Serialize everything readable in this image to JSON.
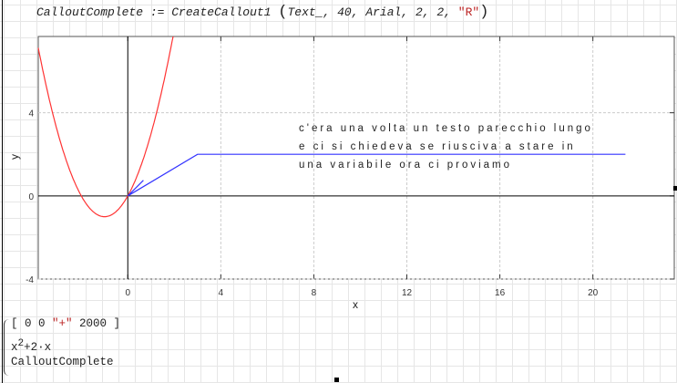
{
  "formula": {
    "lhs": "CalloutComplete",
    "assign": " := ",
    "func": "CreateCallout1",
    "args": [
      "Text_",
      "40",
      "Arial",
      "2",
      "2"
    ],
    "string_arg": "\"R\""
  },
  "plot": {
    "xlabel": "x",
    "ylabel": "y",
    "x_ticks": [
      "0",
      "4",
      "8",
      "12",
      "16",
      "20"
    ],
    "y_ticks": [
      "4",
      "0",
      "-4"
    ],
    "callout_lines": [
      "c'era una volta un testo parecchio lungo",
      "e ci si chiedeva se riusciva a stare in",
      "una variabile ora ci proviamo"
    ],
    "colors": {
      "curve": "#ff3333",
      "callout": "#3333ff",
      "axes": "#000000"
    }
  },
  "chart_data": {
    "type": "line",
    "xlabel": "x",
    "ylabel": "y",
    "xlim": [
      -3.85,
      23.5
    ],
    "ylim": [
      -4,
      7.67
    ],
    "grid": true,
    "series": [
      {
        "expression": "x^2+2·x",
        "color": "#ff3333",
        "x_range": [
          -3.85,
          1.95
        ]
      },
      {
        "color": "#3333ff",
        "points": [
          [
            0.67,
            0.75
          ],
          [
            0,
            0
          ],
          [
            3,
            2
          ],
          [
            21.4,
            2
          ]
        ]
      }
    ]
  },
  "system": {
    "row1_prefix": "[ 0 0 ",
    "row1_string": "\"+\"",
    "row1_suffix": " 2000 ]",
    "row2_base": "x",
    "row2_exp": "2",
    "row2_rest": "+2·x",
    "row3": "CalloutComplete"
  }
}
